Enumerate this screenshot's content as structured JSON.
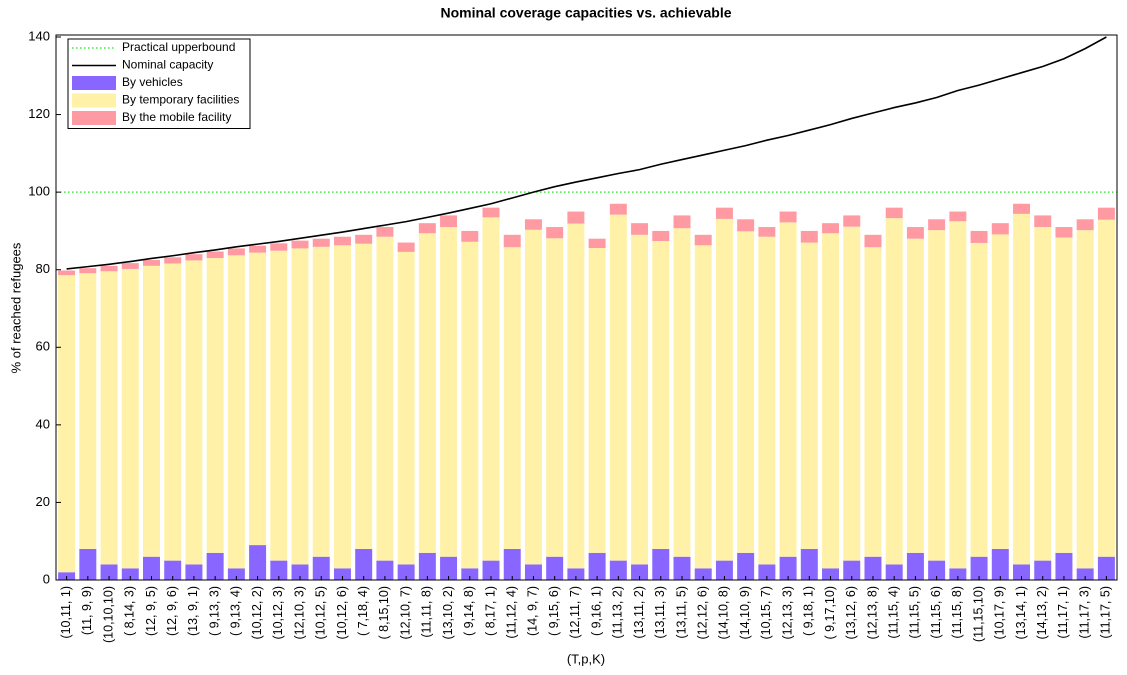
{
  "chart_data": {
    "type": "bar",
    "stacked": true,
    "title": "Nominal coverage capacities vs. achievable",
    "x_label": "(T,p,K)",
    "y_label": "% of reached refugees",
    "ylim": [
      0,
      140
    ],
    "yticks": [
      0,
      20,
      40,
      60,
      80,
      100,
      120,
      140
    ],
    "categories": [
      "(10,11, 1)",
      "(11, 9, 9)",
      "(10,10,10)",
      "( 8,14, 3)",
      "(12, 9, 5)",
      "(12, 9, 6)",
      "(13, 9, 1)",
      "( 9,13, 3)",
      "( 9,13, 4)",
      "(10,12, 2)",
      "(10,12, 3)",
      "(12,10, 3)",
      "(10,12, 5)",
      "(10,12, 6)",
      "( 7,18, 4)",
      "( 8,15,10)",
      "(12,10, 7)",
      "(11,11, 8)",
      "(13,10, 2)",
      "( 9,14, 8)",
      "( 8,17, 1)",
      "(11,12, 4)",
      "(14, 9, 7)",
      "( 9,15, 6)",
      "(12,11, 7)",
      "( 9,16, 1)",
      "(11,13, 2)",
      "(13,11, 2)",
      "(13,11, 3)",
      "(13,11, 5)",
      "(12,12, 6)",
      "(14,10, 8)",
      "(14,10, 9)",
      "(10,15, 7)",
      "(12,13, 3)",
      "( 9,18, 1)",
      "( 9,17,10)",
      "(13,12, 6)",
      "(12,13, 8)",
      "(11,15, 4)",
      "(11,15, 5)",
      "(11,15, 6)",
      "(11,15, 8)",
      "(11,15,10)",
      "(10,17, 9)",
      "(13,14, 1)",
      "(14,13, 2)",
      "(11,17, 1)",
      "(11,17, 3)",
      "(11,17, 5)"
    ],
    "reference_lines": [
      {
        "name": "Practical upperbound",
        "value": 100,
        "color": "#22dd22"
      }
    ],
    "series": [
      {
        "name": "Nominal capacity",
        "kind": "line",
        "color": "#000000",
        "values": [
          80.2,
          80.8,
          81.4,
          82.1,
          82.9,
          83.6,
          84.4,
          85.1,
          85.9,
          86.6,
          87.3,
          88.1,
          88.9,
          89.7,
          90.6,
          91.5,
          92.4,
          93.5,
          94.6,
          95.8,
          97.0,
          98.5,
          100.0,
          101.4,
          102.6,
          103.7,
          104.8,
          105.8,
          107.2,
          108.4,
          109.6,
          110.8,
          112.0,
          113.4,
          114.6,
          116.0,
          117.4,
          119.0,
          120.4,
          121.8,
          123.0,
          124.4,
          126.2,
          127.6,
          129.2,
          130.8,
          132.4,
          134.4,
          137.0,
          140.0
        ]
      },
      {
        "name": "By vehicles",
        "kind": "bar",
        "color": "#8866ff",
        "values": [
          2,
          8,
          4,
          3,
          6,
          5,
          4,
          7,
          3,
          9,
          5,
          4,
          6,
          3,
          8,
          5,
          4,
          7,
          6,
          3,
          5,
          8,
          4,
          6,
          3,
          7,
          5,
          4,
          8,
          6,
          3,
          5,
          7,
          4,
          6,
          8,
          3,
          5,
          6,
          4,
          7,
          5,
          3,
          6,
          8,
          4,
          5,
          7,
          3,
          6
        ]
      },
      {
        "name": "By temporary facilities",
        "kind": "bar",
        "color": "#fff2a8",
        "values": [
          76.6,
          71.1,
          75.6,
          77.2,
          75.0,
          76.6,
          78.4,
          76.0,
          80.7,
          75.4,
          79.9,
          81.5,
          79.9,
          83.3,
          78.7,
          83.5,
          80.6,
          82.4,
          85.0,
          84.2,
          88.5,
          77.8,
          86.3,
          82.1,
          88.9,
          78.6,
          89.2,
          85.0,
          79.4,
          84.7,
          83.3,
          88.1,
          82.9,
          84.5,
          86.2,
          79.0,
          86.4,
          86.1,
          79.8,
          89.3,
          81.0,
          85.2,
          89.5,
          80.9,
          81.1,
          90.4,
          86.0,
          81.3,
          87.2,
          86.9
        ]
      },
      {
        "name": "By the mobile facility",
        "kind": "bar",
        "color": "#ff9aa2",
        "values": [
          1.2,
          1.3,
          1.4,
          1.5,
          1.5,
          1.6,
          1.6,
          1.7,
          1.8,
          1.8,
          1.9,
          2.0,
          2.1,
          2.2,
          2.3,
          2.5,
          2.4,
          2.6,
          3.0,
          2.8,
          2.5,
          3.2,
          2.7,
          2.9,
          3.1,
          2.4,
          2.8,
          3.0,
          2.6,
          3.3,
          2.7,
          2.9,
          3.1,
          2.5,
          2.8,
          3.0,
          2.6,
          2.9,
          3.2,
          2.7,
          3.0,
          2.8,
          2.5,
          3.1,
          2.9,
          2.6,
          3.0,
          2.7,
          2.8,
          3.1
        ]
      }
    ]
  }
}
